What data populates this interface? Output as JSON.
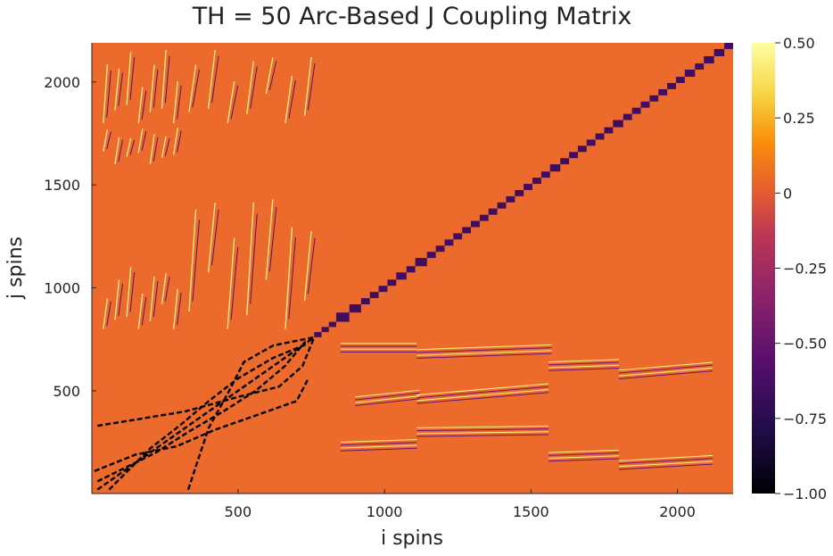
{
  "chart_data": {
    "type": "heatmap",
    "title": "TH = 50 Arc-Based J Coupling Matrix",
    "xlabel": "i spins",
    "ylabel": "j spins",
    "xlim": [
      1,
      2190
    ],
    "ylim": [
      1,
      2190
    ],
    "x_ticks": [
      500,
      1000,
      1500,
      2000
    ],
    "y_ticks": [
      500,
      1000,
      1500,
      2000
    ],
    "colorbar": {
      "range": [
        -1.0,
        0.5
      ],
      "ticks": [
        0.5,
        0.25,
        0,
        -0.25,
        -0.5,
        -0.75,
        -1.0
      ],
      "tick_labels": [
        "0.50",
        "0.25",
        "0",
        "−0.25",
        "−0.50",
        "−0.75",
        "−1.00"
      ],
      "colormap": "inferno"
    },
    "background_value": 0,
    "diagonal_block_value": -0.65,
    "diagonal_blocks": [
      [
        760,
        785
      ],
      [
        785,
        810
      ],
      [
        810,
        835
      ],
      [
        835,
        880
      ],
      [
        880,
        920
      ],
      [
        920,
        950
      ],
      [
        950,
        980
      ],
      [
        980,
        1010
      ],
      [
        1010,
        1040
      ],
      [
        1040,
        1075
      ],
      [
        1075,
        1105
      ],
      [
        1105,
        1145
      ],
      [
        1145,
        1175
      ],
      [
        1175,
        1205
      ],
      [
        1205,
        1235
      ],
      [
        1235,
        1265
      ],
      [
        1265,
        1295
      ],
      [
        1295,
        1325
      ],
      [
        1325,
        1355
      ],
      [
        1355,
        1385
      ],
      [
        1385,
        1415
      ],
      [
        1415,
        1445
      ],
      [
        1445,
        1475
      ],
      [
        1475,
        1505
      ],
      [
        1505,
        1535
      ],
      [
        1535,
        1565
      ],
      [
        1565,
        1600
      ],
      [
        1600,
        1630
      ],
      [
        1630,
        1660
      ],
      [
        1660,
        1690
      ],
      [
        1690,
        1720
      ],
      [
        1720,
        1750
      ],
      [
        1750,
        1780
      ],
      [
        1780,
        1815
      ],
      [
        1815,
        1845
      ],
      [
        1845,
        1875
      ],
      [
        1875,
        1905
      ],
      [
        1905,
        1935
      ],
      [
        1935,
        1965
      ],
      [
        1965,
        1995
      ],
      [
        1995,
        2025
      ],
      [
        2025,
        2060
      ],
      [
        2060,
        2090
      ],
      [
        2090,
        2125
      ],
      [
        2125,
        2160
      ],
      [
        2160,
        2190
      ]
    ],
    "strong_couplings": {
      "value": -1.0,
      "curves": [
        [
          [
            20,
            20
          ],
          [
            170,
            170
          ],
          [
            330,
            330
          ],
          [
            490,
            490
          ],
          [
            650,
            650
          ],
          [
            760,
            760
          ]
        ],
        [
          [
            20,
            60
          ],
          [
            120,
            130
          ],
          [
            220,
            200
          ],
          [
            330,
            300
          ],
          [
            450,
            400
          ],
          [
            560,
            500
          ],
          [
            660,
            620
          ],
          [
            730,
            740
          ]
        ],
        [
          [
            60,
            20
          ],
          [
            130,
            120
          ],
          [
            200,
            220
          ],
          [
            300,
            330
          ],
          [
            400,
            450
          ],
          [
            500,
            560
          ],
          [
            620,
            660
          ],
          [
            740,
            730
          ]
        ],
        [
          [
            20,
            330
          ],
          [
            150,
            360
          ],
          [
            320,
            400
          ],
          [
            500,
            470
          ],
          [
            640,
            520
          ],
          [
            720,
            620
          ],
          [
            760,
            760
          ]
        ],
        [
          [
            330,
            20
          ],
          [
            360,
            150
          ],
          [
            400,
            320
          ],
          [
            470,
            500
          ],
          [
            520,
            640
          ],
          [
            620,
            720
          ],
          [
            760,
            760
          ]
        ],
        [
          [
            10,
            110
          ],
          [
            150,
            190
          ],
          [
            290,
            230
          ],
          [
            420,
            310
          ],
          [
            560,
            380
          ],
          [
            700,
            450
          ],
          [
            740,
            560
          ]
        ]
      ]
    },
    "positive_couplings": {
      "value": 0.45,
      "lower_right_bands": [
        {
          "x0": 850,
          "x1": 1110,
          "y": 730,
          "slope": 0.0
        },
        {
          "x0": 900,
          "x1": 1120,
          "y": 470,
          "slope": 0.15
        },
        {
          "x0": 1110,
          "x1": 1570,
          "y": 700,
          "slope": 0.05
        },
        {
          "x0": 1110,
          "x1": 1560,
          "y": 480,
          "slope": 0.12
        },
        {
          "x0": 1560,
          "x1": 1800,
          "y": 640,
          "slope": 0.05
        },
        {
          "x0": 1800,
          "x1": 2120,
          "y": 600,
          "slope": 0.12
        },
        {
          "x0": 850,
          "x1": 1110,
          "y": 250,
          "slope": 0.05
        },
        {
          "x0": 1110,
          "x1": 1560,
          "y": 320,
          "slope": 0.02
        },
        {
          "x0": 1560,
          "x1": 1800,
          "y": 200,
          "slope": 0.05
        },
        {
          "x0": 1800,
          "x1": 2120,
          "y": 160,
          "slope": 0.08
        }
      ],
      "upper_left_regions": [
        {
          "x0": 20,
          "x1": 300,
          "y0": 800,
          "y1": 1130
        },
        {
          "x0": 300,
          "x1": 760,
          "y0": 800,
          "y1": 1550
        },
        {
          "x0": 20,
          "x1": 300,
          "y0": 1600,
          "y1": 1800
        },
        {
          "x0": 20,
          "x1": 300,
          "y0": 1800,
          "y1": 2190
        },
        {
          "x0": 300,
          "x1": 760,
          "y0": 1800,
          "y1": 2190
        }
      ]
    }
  }
}
